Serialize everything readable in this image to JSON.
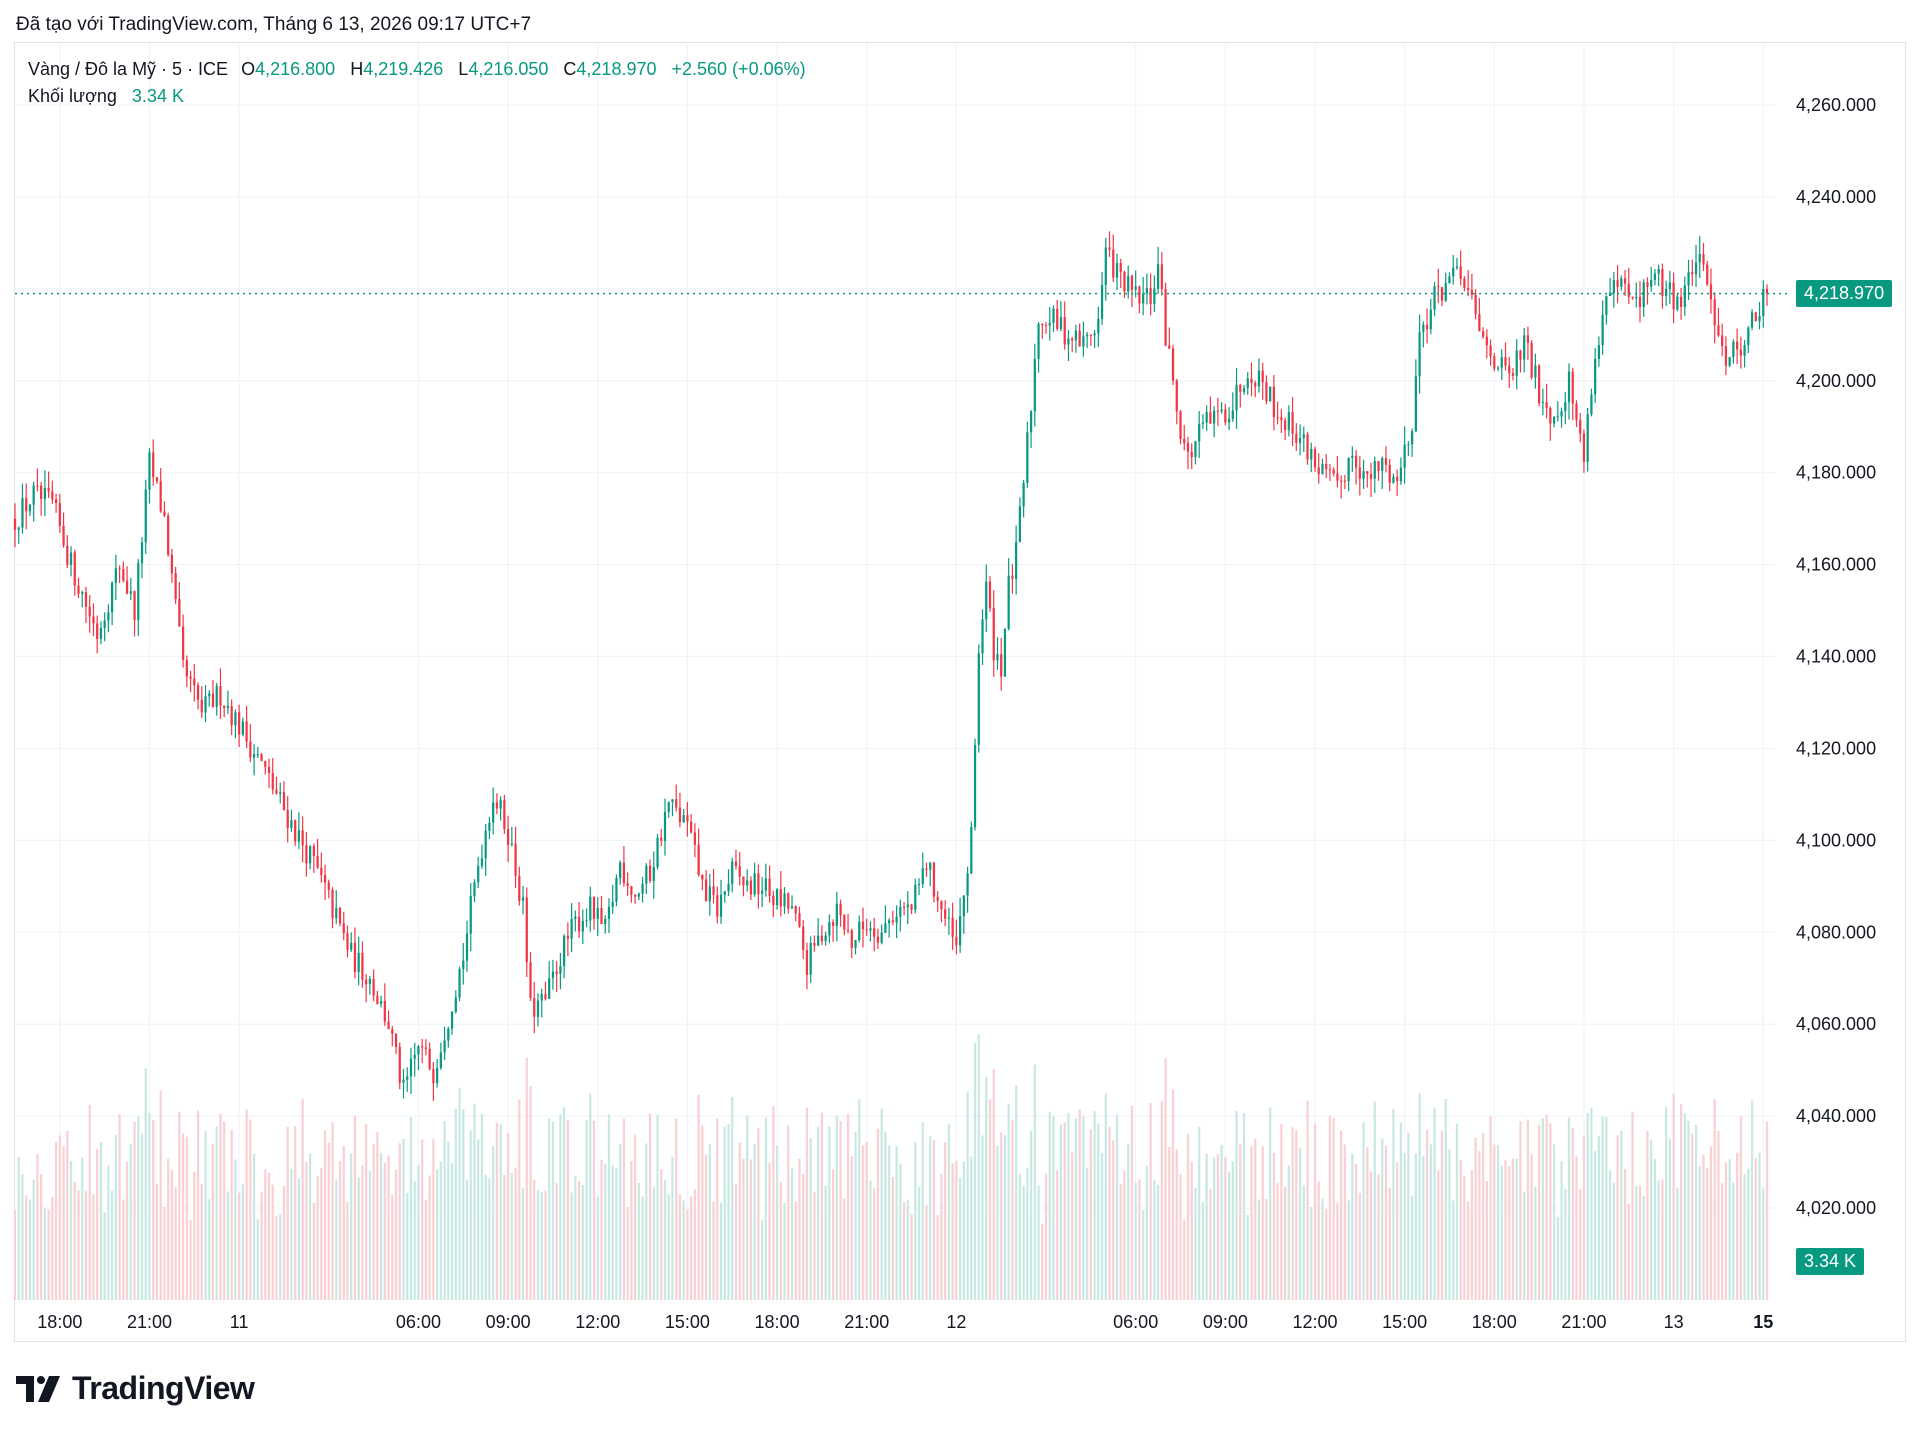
{
  "header": {
    "created_text": "Đã tạo với TradingView.com, Tháng 6 13, 2026 09:17 UTC+7"
  },
  "legend": {
    "symbol": "Vàng / Đô la Mỹ · 5 · ICE",
    "open_label": "O",
    "open": "4,216.800",
    "high_label": "H",
    "high": "4,219.426",
    "low_label": "L",
    "low": "4,216.050",
    "close_label": "C",
    "close": "4,218.970",
    "change": "+2.560 (+0.06%)",
    "volume_label": "Khối lượng",
    "volume": "3.34 K"
  },
  "badges": {
    "last_price": "4,218.970",
    "last_volume": "3.34 K"
  },
  "colors": {
    "up": "#089981",
    "down": "#f23645",
    "up_volume": "#c8e9e3",
    "down_volume": "#f9d0d3",
    "grid": "#f0f3fa",
    "text": "#131722"
  },
  "brand": {
    "name": "TradingView"
  },
  "chart_data": {
    "type": "candlestick",
    "title": "Vàng / Đô la Mỹ · 5 · ICE",
    "y_ticks": [
      "4,260.000",
      "4,240.000",
      "4,220.000",
      "4,200.000",
      "4,180.000",
      "4,160.000",
      "4,140.000",
      "4,120.000",
      "4,100.000",
      "4,080.000",
      "4,060.000",
      "4,040.000",
      "4,020.000"
    ],
    "y_tick_values": [
      4260,
      4240,
      4220,
      4200,
      4180,
      4160,
      4140,
      4120,
      4100,
      4080,
      4060,
      4040,
      4020
    ],
    "ylim": [
      4010,
      4270
    ],
    "x_ticks": [
      "18:00",
      "21:00",
      "11",
      "06:00",
      "09:00",
      "12:00",
      "15:00",
      "18:00",
      "21:00",
      "12",
      "06:00",
      "09:00",
      "12:00",
      "15:00",
      "18:00",
      "21:00",
      "13",
      "15"
    ],
    "x_tick_bold": [
      false,
      false,
      false,
      false,
      false,
      false,
      false,
      false,
      false,
      false,
      false,
      false,
      false,
      false,
      false,
      false,
      false,
      true
    ],
    "x_tick_bar_index": [
      12,
      36,
      60,
      108,
      132,
      156,
      180,
      204,
      228,
      252,
      300,
      324,
      348,
      372,
      396,
      420,
      444,
      468
    ],
    "bar_count": 470,
    "last_price": 4218.97,
    "price_path": [
      [
        0,
        4170
      ],
      [
        5,
        4175
      ],
      [
        10,
        4173
      ],
      [
        15,
        4160
      ],
      [
        22,
        4145
      ],
      [
        28,
        4160
      ],
      [
        32,
        4150
      ],
      [
        36,
        4182
      ],
      [
        40,
        4170
      ],
      [
        45,
        4137
      ],
      [
        50,
        4128
      ],
      [
        55,
        4132
      ],
      [
        60,
        4125
      ],
      [
        65,
        4118
      ],
      [
        70,
        4110
      ],
      [
        75,
        4102
      ],
      [
        80,
        4095
      ],
      [
        85,
        4085
      ],
      [
        90,
        4075
      ],
      [
        95,
        4070
      ],
      [
        100,
        4060
      ],
      [
        104,
        4045
      ],
      [
        108,
        4055
      ],
      [
        112,
        4050
      ],
      [
        116,
        4062
      ],
      [
        120,
        4075
      ],
      [
        124,
        4095
      ],
      [
        128,
        4110
      ],
      [
        132,
        4102
      ],
      [
        136,
        4085
      ],
      [
        138,
        4063
      ],
      [
        142,
        4065
      ],
      [
        146,
        4075
      ],
      [
        150,
        4082
      ],
      [
        154,
        4085
      ],
      [
        158,
        4080
      ],
      [
        162,
        4095
      ],
      [
        166,
        4088
      ],
      [
        170,
        4093
      ],
      [
        175,
        4108
      ],
      [
        180,
        4103
      ],
      [
        184,
        4090
      ],
      [
        188,
        4085
      ],
      [
        192,
        4093
      ],
      [
        196,
        4090
      ],
      [
        200,
        4090
      ],
      [
        204,
        4087
      ],
      [
        208,
        4085
      ],
      [
        212,
        4073
      ],
      [
        216,
        4080
      ],
      [
        220,
        4085
      ],
      [
        224,
        4078
      ],
      [
        228,
        4082
      ],
      [
        232,
        4080
      ],
      [
        236,
        4085
      ],
      [
        240,
        4085
      ],
      [
        244,
        4095
      ],
      [
        248,
        4085
      ],
      [
        252,
        4076
      ],
      [
        256,
        4100
      ],
      [
        258,
        4142
      ],
      [
        260,
        4155
      ],
      [
        262,
        4142
      ],
      [
        264,
        4138
      ],
      [
        266,
        4155
      ],
      [
        268,
        4162
      ],
      [
        270,
        4178
      ],
      [
        272,
        4195
      ],
      [
        274,
        4214
      ],
      [
        278,
        4213
      ],
      [
        282,
        4210
      ],
      [
        286,
        4208
      ],
      [
        290,
        4213
      ],
      [
        292,
        4228
      ],
      [
        296,
        4222
      ],
      [
        300,
        4218
      ],
      [
        304,
        4218
      ],
      [
        306,
        4225
      ],
      [
        308,
        4210
      ],
      [
        310,
        4200
      ],
      [
        312,
        4190
      ],
      [
        314,
        4183
      ],
      [
        318,
        4190
      ],
      [
        322,
        4192
      ],
      [
        326,
        4195
      ],
      [
        330,
        4203
      ],
      [
        334,
        4200
      ],
      [
        338,
        4193
      ],
      [
        342,
        4190
      ],
      [
        346,
        4185
      ],
      [
        350,
        4180
      ],
      [
        354,
        4176
      ],
      [
        358,
        4185
      ],
      [
        362,
        4178
      ],
      [
        366,
        4182
      ],
      [
        370,
        4178
      ],
      [
        374,
        4192
      ],
      [
        376,
        4210
      ],
      [
        380,
        4218
      ],
      [
        384,
        4222
      ],
      [
        388,
        4222
      ],
      [
        392,
        4210
      ],
      [
        396,
        4205
      ],
      [
        400,
        4200
      ],
      [
        404,
        4208
      ],
      [
        408,
        4198
      ],
      [
        412,
        4192
      ],
      [
        416,
        4200
      ],
      [
        420,
        4183
      ],
      [
        422,
        4200
      ],
      [
        426,
        4218
      ],
      [
        430,
        4220
      ],
      [
        434,
        4216
      ],
      [
        438,
        4223
      ],
      [
        442,
        4220
      ],
      [
        446,
        4217
      ],
      [
        450,
        4227
      ],
      [
        454,
        4218
      ],
      [
        458,
        4205
      ],
      [
        462,
        4208
      ],
      [
        466,
        4214
      ],
      [
        469,
        4219
      ]
    ],
    "volume_ylim": [
      0,
      12000
    ]
  }
}
